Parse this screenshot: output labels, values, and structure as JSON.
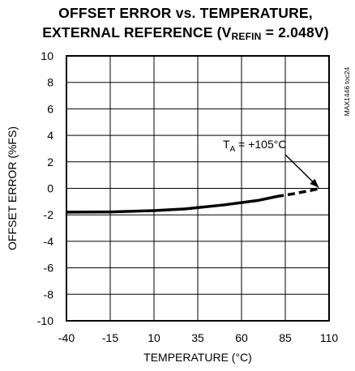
{
  "chart_data": {
    "type": "line",
    "title_line1": "OFFSET ERROR vs. TEMPERATURE,",
    "title_line2_prefix": "EXTERNAL REFERENCE (V",
    "title_line2_sub": "REFIN",
    "title_line2_suffix": " = 2.048V)",
    "xlabel": "TEMPERATURE (°C)",
    "ylabel": "OFFSET ERROR (%FS)",
    "side_label": "MAX1446 toc24",
    "xlim": [
      -40,
      110
    ],
    "ylim": [
      -10,
      10
    ],
    "xticks": [
      -40,
      -15,
      10,
      35,
      60,
      85,
      110
    ],
    "yticks": [
      10,
      8,
      6,
      4,
      2,
      0,
      -2,
      -4,
      -6,
      -8,
      -10
    ],
    "grid": true,
    "series": [
      {
        "style": "solid",
        "x": [
          -40,
          -15,
          10,
          28,
          50,
          70,
          80
        ],
        "y": [
          -1.8,
          -1.78,
          -1.68,
          -1.55,
          -1.25,
          -0.9,
          -0.62
        ]
      },
      {
        "style": "dashed",
        "x": [
          80,
          90,
          100,
          105
        ],
        "y": [
          -0.62,
          -0.4,
          -0.15,
          0
        ]
      }
    ],
    "annotation": {
      "prefix": "T",
      "sub": "A",
      "suffix": " = +105°C",
      "target_x": 105,
      "target_y": 0
    }
  }
}
